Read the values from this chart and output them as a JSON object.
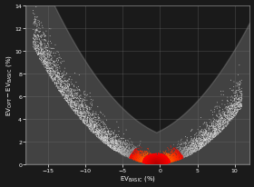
{
  "title": "",
  "xlabel_text": "EV",
  "xlabel_sub": "BASIC",
  "xlabel_unit": "(%)",
  "ylabel_text": "EV",
  "ylabel_sub1": "OPT",
  "ylabel_sub2": "BASIC",
  "ylabel_unit": "(%)",
  "xlim": [
    -18,
    12
  ],
  "ylim": [
    0,
    14
  ],
  "xticks": [
    -15,
    -10,
    -5,
    0,
    5,
    10
  ],
  "yticks": [
    0,
    2,
    4,
    6,
    8,
    10,
    12,
    14
  ],
  "background_color": "#1a1a1a",
  "axes_bg_color": "#1a1a1a",
  "grid_color": "#777777",
  "seed": 42,
  "n_points": 8000,
  "x_center": -0.5,
  "a_coeff": 0.038,
  "x_min": -17,
  "x_max": 11
}
